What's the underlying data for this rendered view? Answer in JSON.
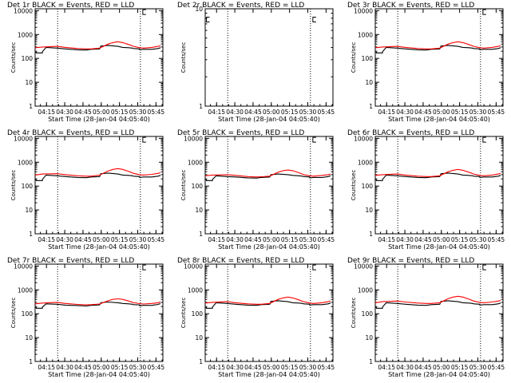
{
  "window": {
    "common_xlabel": "Start Time (28-Jan-04 04:05:40)",
    "common_ylabel": "Counts/sec",
    "x_tick_labels": [
      "04:15",
      "04:30",
      "04:45",
      "05:00",
      "05:15",
      "05:30",
      "05:45"
    ],
    "y_tick_labels": [
      "1",
      "10",
      "100",
      "1000",
      "10000"
    ]
  },
  "colors": {
    "events": "#000000",
    "lld": "#ff0000",
    "axes": "#000000",
    "background": "#ffffff"
  },
  "chart_data": [
    {
      "type": "line",
      "title": "Det 1r BLACK = Events, RED = LLD",
      "xlabel": "Start Time (28-Jan-04 04:05:40)",
      "ylabel": "Counts/sec",
      "x_unit": "minutes from 04:05:40",
      "xlim": [
        0,
        105
      ],
      "ylim": [
        1,
        12000
      ],
      "yscale": "log",
      "vlines": [
        18.5,
        86.5
      ],
      "brackets": [
        {
          "x": 88.5,
          "y": 11000
        }
      ],
      "series": [
        {
          "color": "#000000",
          "x": [
            0,
            1,
            1,
            6,
            6,
            9,
            18,
            25,
            35,
            42,
            46,
            53,
            54,
            60,
            68,
            72,
            77,
            80,
            81,
            86,
            86,
            89,
            96,
            101,
            103
          ],
          "y": [
            180,
            180,
            170,
            170,
            190,
            290,
            270,
            250,
            230,
            225,
            240,
            250,
            330,
            350,
            320,
            290,
            280,
            270,
            260,
            250,
            230,
            240,
            240,
            260,
            280
          ]
        },
        {
          "color": "#ff0000",
          "x": [
            0,
            6,
            18,
            25,
            35,
            42,
            46,
            53,
            60,
            64,
            68,
            72,
            77,
            81,
            86,
            89,
            96,
            101,
            103
          ],
          "y": [
            280,
            300,
            320,
            290,
            260,
            250,
            250,
            270,
            400,
            460,
            500,
            460,
            380,
            320,
            280,
            270,
            290,
            320,
            340
          ]
        }
      ]
    },
    {
      "type": "line",
      "title": "Det 2r BLACK = Events, RED = LLD",
      "xlabel": "Start Time (28-Jan-04 04:05:40)",
      "ylabel": "Counts/sec",
      "x_unit": "minutes from 04:05:40",
      "xlim": [
        0,
        105
      ],
      "ylim": [
        1,
        10
      ],
      "yscale": "log",
      "vlines": [
        18.5,
        86.5
      ],
      "brackets": [
        {
          "x": 1,
          "y": 8.2
        },
        {
          "x": 88.5,
          "y": 8.2
        }
      ],
      "series": []
    },
    {
      "type": "line",
      "title": "Det 3r BLACK = Events, RED = LLD",
      "xlabel": "Start Time (28-Jan-04 04:05:40)",
      "ylabel": "Counts/sec",
      "x_unit": "minutes from 04:05:40",
      "xlim": [
        0,
        105
      ],
      "ylim": [
        1,
        12000
      ],
      "yscale": "log",
      "vlines": [
        18.5,
        86.5
      ],
      "brackets": [
        {
          "x": 88.5,
          "y": 11000
        }
      ],
      "series": [
        {
          "color": "#000000",
          "x": [
            0,
            1,
            1,
            6,
            6,
            9,
            18,
            25,
            35,
            42,
            46,
            53,
            54,
            60,
            68,
            72,
            77,
            80,
            81,
            86,
            86,
            89,
            96,
            101,
            103
          ],
          "y": [
            180,
            180,
            170,
            170,
            190,
            290,
            270,
            250,
            230,
            225,
            240,
            250,
            330,
            350,
            320,
            290,
            280,
            270,
            260,
            250,
            230,
            240,
            240,
            260,
            280
          ]
        },
        {
          "color": "#ff0000",
          "x": [
            0,
            6,
            18,
            25,
            35,
            42,
            46,
            53,
            60,
            64,
            68,
            72,
            77,
            81,
            86,
            89,
            96,
            101,
            103
          ],
          "y": [
            280,
            300,
            320,
            290,
            260,
            250,
            250,
            270,
            400,
            460,
            500,
            460,
            380,
            320,
            280,
            270,
            290,
            320,
            340
          ]
        }
      ]
    },
    {
      "type": "line",
      "title": "Det 4r BLACK = Events, RED = LLD",
      "xlabel": "Start Time (28-Jan-04 04:05:40)",
      "ylabel": "Counts/sec",
      "x_unit": "minutes from 04:05:40",
      "xlim": [
        0,
        105
      ],
      "ylim": [
        1,
        12000
      ],
      "yscale": "log",
      "vlines": [
        18.5,
        86.5
      ],
      "brackets": [
        {
          "x": 88.5,
          "y": 11000
        }
      ],
      "series": [
        {
          "color": "#000000",
          "x": [
            0,
            1,
            1,
            6,
            6,
            9,
            18,
            25,
            35,
            42,
            46,
            53,
            54,
            60,
            68,
            72,
            77,
            80,
            81,
            86,
            86,
            89,
            96,
            101,
            103
          ],
          "y": [
            180,
            180,
            170,
            170,
            190,
            290,
            270,
            250,
            230,
            225,
            240,
            250,
            330,
            350,
            320,
            290,
            280,
            270,
            260,
            250,
            230,
            240,
            240,
            260,
            280
          ]
        },
        {
          "color": "#ff0000",
          "x": [
            0,
            6,
            18,
            25,
            35,
            42,
            46,
            53,
            60,
            64,
            68,
            72,
            77,
            81,
            86,
            89,
            96,
            101,
            103
          ],
          "y": [
            290,
            320,
            330,
            300,
            270,
            260,
            260,
            290,
            430,
            500,
            540,
            500,
            410,
            340,
            300,
            290,
            310,
            340,
            360
          ]
        }
      ]
    },
    {
      "type": "line",
      "title": "Det 5r BLACK = Events, RED = LLD",
      "xlabel": "Start Time (28-Jan-04 04:05:40)",
      "ylabel": "Counts/sec",
      "x_unit": "minutes from 04:05:40",
      "xlim": [
        0,
        105
      ],
      "ylim": [
        1,
        12000
      ],
      "yscale": "log",
      "vlines": [
        18.5,
        86.5
      ],
      "brackets": [
        {
          "x": 88.5,
          "y": 11000
        }
      ],
      "series": [
        {
          "color": "#000000",
          "x": [
            0,
            1,
            1,
            6,
            6,
            9,
            18,
            25,
            35,
            42,
            46,
            53,
            54,
            60,
            68,
            72,
            77,
            80,
            81,
            86,
            86,
            89,
            96,
            101,
            103
          ],
          "y": [
            180,
            180,
            170,
            170,
            190,
            270,
            250,
            240,
            220,
            215,
            230,
            240,
            300,
            320,
            300,
            280,
            270,
            260,
            250,
            240,
            220,
            230,
            230,
            250,
            270
          ]
        },
        {
          "color": "#ff0000",
          "x": [
            0,
            6,
            18,
            25,
            35,
            42,
            46,
            53,
            60,
            64,
            68,
            72,
            77,
            81,
            86,
            89,
            96,
            101,
            103
          ],
          "y": [
            270,
            290,
            300,
            280,
            250,
            240,
            245,
            260,
            380,
            440,
            470,
            440,
            360,
            300,
            270,
            260,
            280,
            300,
            320
          ]
        }
      ]
    },
    {
      "type": "line",
      "title": "Det 6r BLACK = Events, RED = LLD",
      "xlabel": "Start Time (28-Jan-04 04:05:40)",
      "ylabel": "Counts/sec",
      "x_unit": "minutes from 04:05:40",
      "xlim": [
        0,
        105
      ],
      "ylim": [
        1,
        12000
      ],
      "yscale": "log",
      "vlines": [
        18.5,
        86.5
      ],
      "brackets": [
        {
          "x": 88.5,
          "y": 11000
        }
      ],
      "series": [
        {
          "color": "#000000",
          "x": [
            0,
            1,
            1,
            6,
            6,
            9,
            18,
            25,
            35,
            42,
            46,
            53,
            54,
            60,
            68,
            72,
            77,
            80,
            81,
            86,
            86,
            89,
            96,
            101,
            103
          ],
          "y": [
            180,
            180,
            170,
            170,
            190,
            290,
            270,
            250,
            230,
            225,
            240,
            250,
            330,
            350,
            320,
            290,
            280,
            270,
            260,
            250,
            230,
            240,
            240,
            260,
            280
          ]
        },
        {
          "color": "#ff0000",
          "x": [
            0,
            6,
            18,
            25,
            35,
            42,
            46,
            53,
            60,
            64,
            68,
            72,
            77,
            81,
            86,
            89,
            96,
            101,
            103
          ],
          "y": [
            280,
            300,
            320,
            290,
            260,
            250,
            250,
            270,
            400,
            460,
            500,
            460,
            380,
            320,
            280,
            270,
            290,
            320,
            340
          ]
        }
      ]
    },
    {
      "type": "line",
      "title": "Det 7r BLACK = Events, RED = LLD",
      "xlabel": "Start Time (28-Jan-04 04:05:40)",
      "ylabel": "Counts/sec",
      "x_unit": "minutes from 04:05:40",
      "xlim": [
        0,
        105
      ],
      "ylim": [
        1,
        12000
      ],
      "yscale": "log",
      "vlines": [
        18.5,
        86.5
      ],
      "brackets": [
        {
          "x": 88.5,
          "y": 11000
        }
      ],
      "series": [
        {
          "color": "#000000",
          "x": [
            0,
            1,
            1,
            6,
            6,
            9,
            18,
            25,
            35,
            42,
            46,
            53,
            54,
            60,
            68,
            72,
            77,
            80,
            81,
            86,
            86,
            89,
            96,
            101,
            103
          ],
          "y": [
            180,
            180,
            170,
            170,
            190,
            260,
            250,
            230,
            220,
            210,
            225,
            235,
            290,
            310,
            290,
            270,
            260,
            250,
            240,
            235,
            215,
            225,
            225,
            245,
            265
          ]
        },
        {
          "color": "#ff0000",
          "x": [
            0,
            6,
            18,
            25,
            35,
            42,
            46,
            53,
            60,
            64,
            68,
            72,
            77,
            81,
            86,
            89,
            96,
            101,
            103
          ],
          "y": [
            260,
            280,
            300,
            270,
            245,
            235,
            240,
            255,
            350,
            400,
            420,
            400,
            340,
            290,
            265,
            255,
            270,
            290,
            310
          ]
        }
      ]
    },
    {
      "type": "line",
      "title": "Det 8r BLACK = Events, RED = LLD",
      "xlabel": "Start Time (28-Jan-04 04:05:40)",
      "ylabel": "Counts/sec",
      "x_unit": "minutes from 04:05:40",
      "xlim": [
        0,
        105
      ],
      "ylim": [
        1,
        12000
      ],
      "yscale": "log",
      "vlines": [
        18.5,
        86.5
      ],
      "brackets": [
        {
          "x": 88.5,
          "y": 11000
        }
      ],
      "series": [
        {
          "color": "#000000",
          "x": [
            0,
            1,
            1,
            6,
            6,
            9,
            18,
            25,
            35,
            42,
            46,
            53,
            54,
            60,
            68,
            72,
            77,
            80,
            81,
            86,
            86,
            89,
            96,
            101,
            103
          ],
          "y": [
            180,
            180,
            170,
            170,
            190,
            290,
            270,
            250,
            230,
            225,
            240,
            250,
            330,
            350,
            320,
            290,
            280,
            270,
            260,
            250,
            230,
            240,
            240,
            260,
            280
          ]
        },
        {
          "color": "#ff0000",
          "x": [
            0,
            6,
            18,
            25,
            35,
            42,
            46,
            53,
            60,
            64,
            68,
            72,
            77,
            81,
            86,
            89,
            96,
            101,
            103
          ],
          "y": [
            280,
            300,
            320,
            290,
            260,
            250,
            250,
            270,
            400,
            460,
            500,
            460,
            380,
            320,
            280,
            270,
            290,
            320,
            340
          ]
        }
      ]
    },
    {
      "type": "line",
      "title": "Det 9r BLACK = Events, RED = LLD",
      "xlabel": "Start Time (28-Jan-04 04:05:40)",
      "ylabel": "Counts/sec",
      "x_unit": "minutes from 04:05:40",
      "xlim": [
        0,
        105
      ],
      "ylim": [
        1,
        12000
      ],
      "yscale": "log",
      "vlines": [
        18.5,
        86.5
      ],
      "brackets": [
        {
          "x": 88.5,
          "y": 11000
        }
      ],
      "series": [
        {
          "color": "#000000",
          "x": [
            0,
            1,
            1,
            6,
            6,
            9,
            18,
            25,
            35,
            42,
            46,
            53,
            54,
            60,
            68,
            72,
            77,
            80,
            81,
            86,
            86,
            89,
            96,
            101,
            103
          ],
          "y": [
            180,
            180,
            170,
            170,
            190,
            290,
            270,
            250,
            230,
            225,
            240,
            250,
            330,
            350,
            320,
            290,
            280,
            270,
            260,
            250,
            230,
            240,
            240,
            260,
            280
          ]
        },
        {
          "color": "#ff0000",
          "x": [
            0,
            6,
            18,
            25,
            35,
            42,
            46,
            53,
            60,
            64,
            68,
            72,
            77,
            81,
            86,
            89,
            96,
            101,
            103
          ],
          "y": [
            290,
            320,
            340,
            310,
            280,
            270,
            270,
            290,
            430,
            500,
            540,
            500,
            410,
            340,
            300,
            290,
            310,
            340,
            360
          ]
        }
      ]
    }
  ]
}
